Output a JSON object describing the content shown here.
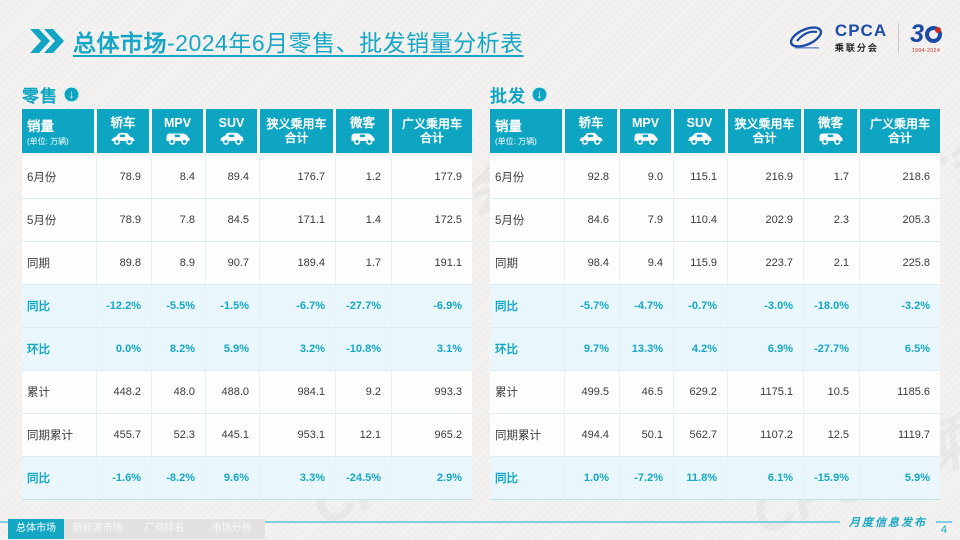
{
  "colors": {
    "accent": "#14a7c4",
    "header_bg": "#0da5c2",
    "percent_row_bg": "#e9f6fb",
    "percent_text": "#16a8c6",
    "logo_blue": "#1c4ba8",
    "logo_red": "#d22a23"
  },
  "icons": {
    "chevrons": "double-chevron-right",
    "down_arrow": "↓"
  },
  "header": {
    "title_bold": "总体市场",
    "title_rest": "-2024年6月零售、批发销量分析表"
  },
  "logo": {
    "cpca": "CPCA",
    "cpca_sub": "乘联分会",
    "anniversary_3": "3",
    "anniversary_years": "1994-2024"
  },
  "decor": {
    "watermark": "CPCA 乘联分会"
  },
  "chart_data": [
    {
      "type": "table",
      "title": "零售",
      "corner": {
        "label": "销量",
        "unit": "(单位: 万辆)"
      },
      "columns": [
        {
          "label": "轿车",
          "icon": "sedan-icon"
        },
        {
          "label": "MPV",
          "icon": "mpv-icon"
        },
        {
          "label": "SUV",
          "icon": "suv-icon"
        },
        {
          "label": "狭义乘用车",
          "label2": "合计"
        },
        {
          "label": "微客",
          "icon": "microvan-icon"
        },
        {
          "label": "广义乘用车",
          "label2": "合计"
        }
      ],
      "rows": [
        {
          "label": "6月份",
          "kind": "value",
          "values": [
            "78.9",
            "8.4",
            "89.4",
            "176.7",
            "1.2",
            "177.9"
          ]
        },
        {
          "label": "5月份",
          "kind": "value",
          "values": [
            "78.9",
            "7.8",
            "84.5",
            "171.1",
            "1.4",
            "172.5"
          ]
        },
        {
          "label": "同期",
          "kind": "value",
          "values": [
            "89.8",
            "8.9",
            "90.7",
            "189.4",
            "1.7",
            "191.1"
          ]
        },
        {
          "label": "同比",
          "kind": "percent",
          "values": [
            "-12.2%",
            "-5.5%",
            "-1.5%",
            "-6.7%",
            "-27.7%",
            "-6.9%"
          ]
        },
        {
          "label": "环比",
          "kind": "percent",
          "values": [
            "0.0%",
            "8.2%",
            "5.9%",
            "3.2%",
            "-10.8%",
            "3.1%"
          ]
        },
        {
          "label": "累计",
          "kind": "value",
          "values": [
            "448.2",
            "48.0",
            "488.0",
            "984.1",
            "9.2",
            "993.3"
          ]
        },
        {
          "label": "同期累计",
          "kind": "value",
          "values": [
            "455.7",
            "52.3",
            "445.1",
            "953.1",
            "12.1",
            "965.2"
          ]
        },
        {
          "label": "同比",
          "kind": "percent",
          "values": [
            "-1.6%",
            "-8.2%",
            "9.6%",
            "3.3%",
            "-24.5%",
            "2.9%"
          ]
        }
      ]
    },
    {
      "type": "table",
      "title": "批发",
      "corner": {
        "label": "销量",
        "unit": "(单位: 万辆)"
      },
      "columns": [
        {
          "label": "轿车",
          "icon": "sedan-icon"
        },
        {
          "label": "MPV",
          "icon": "mpv-icon"
        },
        {
          "label": "SUV",
          "icon": "suv-icon"
        },
        {
          "label": "狭义乘用车",
          "label2": "合计"
        },
        {
          "label": "微客",
          "icon": "microvan-icon"
        },
        {
          "label": "广义乘用车",
          "label2": "合计"
        }
      ],
      "rows": [
        {
          "label": "6月份",
          "kind": "value",
          "values": [
            "92.8",
            "9.0",
            "115.1",
            "216.9",
            "1.7",
            "218.6"
          ]
        },
        {
          "label": "5月份",
          "kind": "value",
          "values": [
            "84.6",
            "7.9",
            "110.4",
            "202.9",
            "2.3",
            "205.3"
          ]
        },
        {
          "label": "同期",
          "kind": "value",
          "values": [
            "98.4",
            "9.4",
            "115.9",
            "223.7",
            "2.1",
            "225.8"
          ]
        },
        {
          "label": "同比",
          "kind": "percent",
          "values": [
            "-5.7%",
            "-4.7%",
            "-0.7%",
            "-3.0%",
            "-18.0%",
            "-3.2%"
          ]
        },
        {
          "label": "环比",
          "kind": "percent",
          "values": [
            "9.7%",
            "13.3%",
            "4.2%",
            "6.9%",
            "-27.7%",
            "6.5%"
          ]
        },
        {
          "label": "累计",
          "kind": "value",
          "values": [
            "499.5",
            "46.5",
            "629.2",
            "1175.1",
            "10.5",
            "1185.6"
          ]
        },
        {
          "label": "同期累计",
          "kind": "value",
          "values": [
            "494.4",
            "50.1",
            "562.7",
            "1107.2",
            "12.5",
            "1119.7"
          ]
        },
        {
          "label": "同比",
          "kind": "percent",
          "values": [
            "1.0%",
            "-7.2%",
            "11.8%",
            "6.1%",
            "-15.9%",
            "5.9%"
          ]
        }
      ]
    }
  ],
  "footer": {
    "note": "月度信息发布",
    "page_number": "4",
    "tabs": [
      {
        "label": "总体市场",
        "active": true
      },
      {
        "label": "新能源市场",
        "active": false
      },
      {
        "label": "厂商排名",
        "active": false
      },
      {
        "label": "市场分析",
        "active": false
      }
    ]
  }
}
